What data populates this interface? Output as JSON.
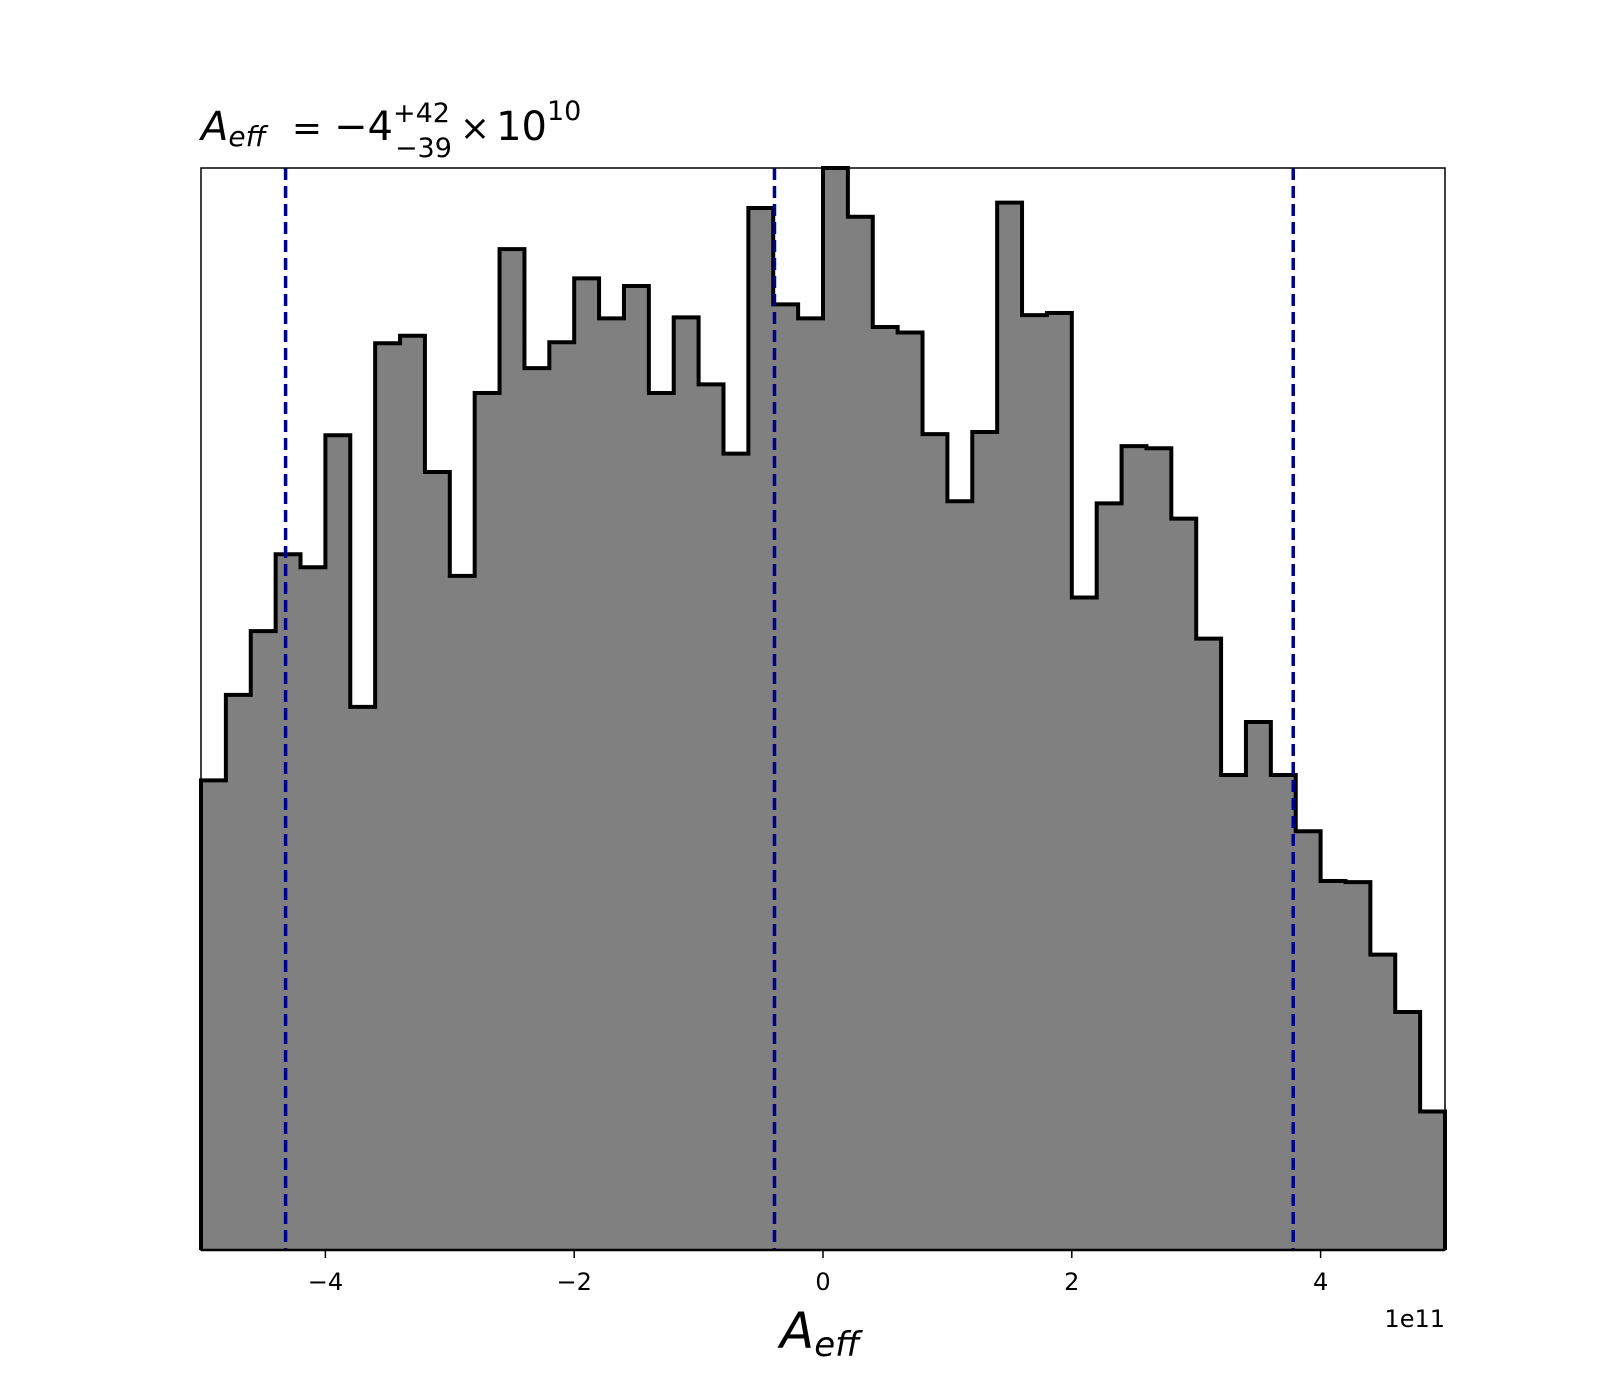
{
  "chart_data": {
    "type": "histogram",
    "title": {
      "symbol": "A",
      "symbol_sub": "eff",
      "equals": "=",
      "median": "−4",
      "err_plus": "+42",
      "err_minus": "−39",
      "times": "×",
      "base": "10",
      "exponent": "10"
    },
    "xlabel": {
      "symbol": "A",
      "subscript": "eff"
    },
    "offset_text": "1e11",
    "x_scale": 100000000000.0,
    "xlim": [
      -5.0,
      5.0
    ],
    "ylim": [
      0,
      1.0
    ],
    "y_axis_visible": false,
    "grid": false,
    "fill_color": "#808080",
    "edge_color": "#000000",
    "line_color": "#00008b",
    "x_ticks": [
      -4,
      -2,
      0,
      2,
      4
    ],
    "x_tick_labels": [
      "−4",
      "−2",
      "0",
      "2",
      "4"
    ],
    "bin_edges": [
      -5.0,
      -4.8,
      -4.6,
      -4.4,
      -4.2,
      -4.0,
      -3.8,
      -3.6,
      -3.4,
      -3.2,
      -3.0,
      -2.8,
      -2.6,
      -2.4,
      -2.2,
      -2.0,
      -1.8,
      -1.6,
      -1.4,
      -1.2,
      -1.0,
      -0.8,
      -0.6,
      -0.4,
      -0.2,
      0.0,
      0.2,
      0.4,
      0.6,
      0.8,
      1.0,
      1.2,
      1.4,
      1.6,
      1.8,
      2.0,
      2.2,
      2.4,
      2.6,
      2.8,
      3.0,
      3.2,
      3.4,
      3.6,
      3.8,
      4.0,
      4.2,
      4.4,
      4.6,
      4.8,
      5.0
    ],
    "values": [
      0.434,
      0.513,
      0.572,
      0.643,
      0.631,
      0.753,
      0.502,
      0.838,
      0.845,
      0.719,
      0.623,
      0.792,
      0.925,
      0.815,
      0.839,
      0.898,
      0.861,
      0.891,
      0.792,
      0.862,
      0.8,
      0.736,
      0.963,
      0.874,
      0.861,
      1.0,
      0.955,
      0.853,
      0.848,
      0.754,
      0.692,
      0.756,
      0.968,
      0.864,
      0.866,
      0.603,
      0.69,
      0.743,
      0.741,
      0.676,
      0.565,
      0.439,
      0.488,
      0.439,
      0.387,
      0.341,
      0.34,
      0.273,
      0.22,
      0.128
    ],
    "vlines": [
      -4.32,
      -0.39,
      3.78
    ]
  }
}
